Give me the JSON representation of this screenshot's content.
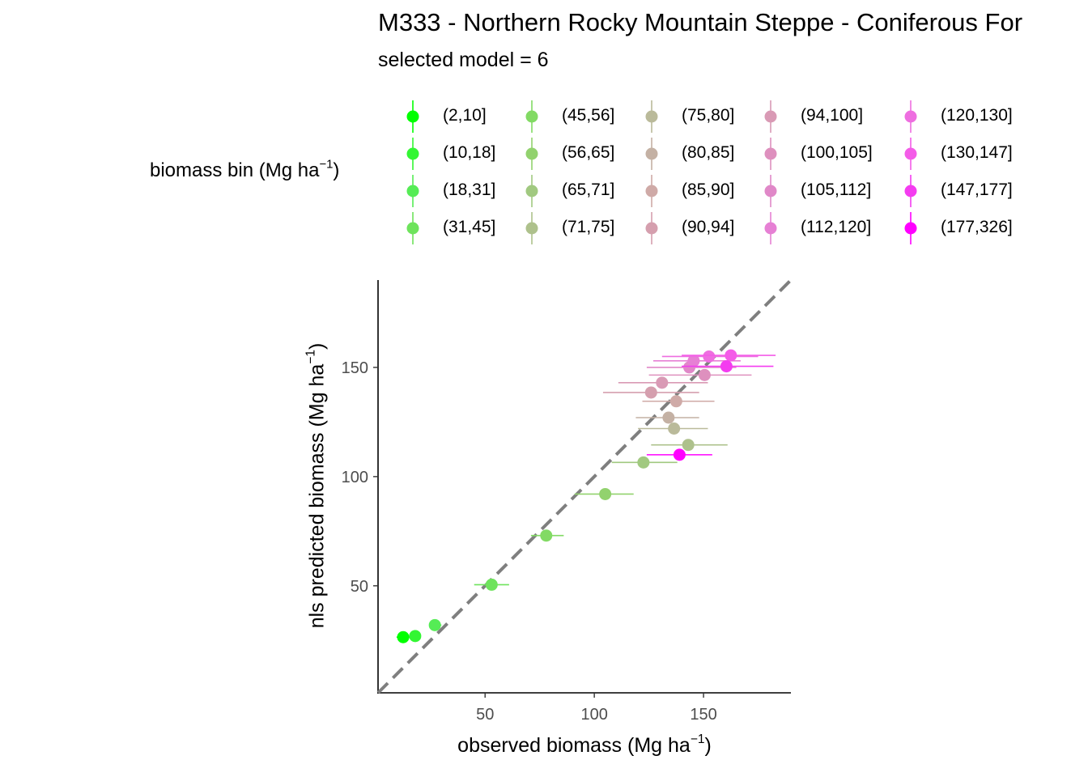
{
  "chart_data": {
    "type": "scatter",
    "title": "M333 - Northern Rocky Mountain Steppe - Coniferous For",
    "subtitle": "selected model = 6",
    "legend_title": "biomass bin (Mg ha",
    "legend_title_sup": "−1",
    "legend_title_close": ")",
    "legend_position": "top",
    "xlabel": "observed biomass (Mg ha",
    "xlabel_sup": "−1",
    "xlabel_close": ")",
    "ylabel": "nls predicted biomass (Mg ha",
    "ylabel_sup": "−1",
    "ylabel_close": ")",
    "xlim": [
      1,
      190
    ],
    "ylim": [
      1,
      190
    ],
    "x_ticks": [
      50,
      100,
      150
    ],
    "y_ticks": [
      50,
      100,
      150
    ],
    "grid": false,
    "reference_line": {
      "type": "1:1",
      "style": "dashed",
      "color": "#7f7f7f"
    },
    "points": [
      {
        "bin": "(2,10]",
        "color": "#00FF00",
        "x": 12.5,
        "y": 26.5,
        "xmin": 9.5,
        "xmax": 15.5
      },
      {
        "bin": "(10,18]",
        "color": "#33F633",
        "x": 18.0,
        "y": 27.0,
        "xmin": 16.0,
        "xmax": 20.0
      },
      {
        "bin": "(18,31]",
        "color": "#55EC55",
        "x": 27.0,
        "y": 32.0,
        "xmin": 25.0,
        "xmax": 30.0
      },
      {
        "bin": "(31,45]",
        "color": "#6EE35C",
        "x": 53.0,
        "y": 50.5,
        "xmin": 45.0,
        "xmax": 61.0
      },
      {
        "bin": "(45,56]",
        "color": "#82DA64",
        "x": 78.0,
        "y": 73.0,
        "xmin": 71.0,
        "xmax": 86.0
      },
      {
        "bin": "(56,65]",
        "color": "#92D26E",
        "x": 105.0,
        "y": 92.0,
        "xmin": 91.0,
        "xmax": 118.0
      },
      {
        "bin": "(65,71]",
        "color": "#A1C980",
        "x": 122.5,
        "y": 106.5,
        "xmin": 108.0,
        "xmax": 138.0
      },
      {
        "bin": "(71,75]",
        "color": "#AEC18C",
        "x": 143.0,
        "y": 114.5,
        "xmin": 126.0,
        "xmax": 161.0
      },
      {
        "bin": "(75,80]",
        "color": "#BABA9A",
        "x": 136.5,
        "y": 122.0,
        "xmin": 120.0,
        "xmax": 152.0
      },
      {
        "bin": "(80,85]",
        "color": "#C4B1A4",
        "x": 134.0,
        "y": 127.0,
        "xmin": 119.0,
        "xmax": 148.0
      },
      {
        "bin": "(85,90]",
        "color": "#CFAAA7",
        "x": 137.5,
        "y": 134.5,
        "xmin": 122.0,
        "xmax": 155.0
      },
      {
        "bin": "(90,94]",
        "color": "#D59FAE",
        "x": 126.0,
        "y": 138.5,
        "xmin": 104.0,
        "xmax": 148.0
      },
      {
        "bin": "(94,100]",
        "color": "#D99AB5",
        "x": 131.0,
        "y": 143.0,
        "xmin": 111.0,
        "xmax": 152.0
      },
      {
        "bin": "(100,105]",
        "color": "#DE90BE",
        "x": 150.5,
        "y": 146.5,
        "xmin": 125.0,
        "xmax": 172.0
      },
      {
        "bin": "(105,112]",
        "color": "#E088C8",
        "x": 143.5,
        "y": 150.0,
        "xmin": 124.0,
        "xmax": 165.0
      },
      {
        "bin": "(112,120]",
        "color": "#E680D4",
        "x": 145.5,
        "y": 153.0,
        "xmin": 127.0,
        "xmax": 167.0
      },
      {
        "bin": "(120,130]",
        "color": "#EE6EE0",
        "x": 152.5,
        "y": 155.0,
        "xmin": 131.0,
        "xmax": 175.0
      },
      {
        "bin": "(130,147]",
        "color": "#F45CE8",
        "x": 162.5,
        "y": 155.5,
        "xmin": 140.0,
        "xmax": 183.0
      },
      {
        "bin": "(147,177]",
        "color": "#F43CF0",
        "x": 160.5,
        "y": 150.5,
        "xmin": 140.0,
        "xmax": 182.0
      },
      {
        "bin": "(177,326]",
        "color": "#FF00FF",
        "x": 139.0,
        "y": 110.0,
        "xmin": 124.0,
        "xmax": 154.0
      }
    ]
  }
}
